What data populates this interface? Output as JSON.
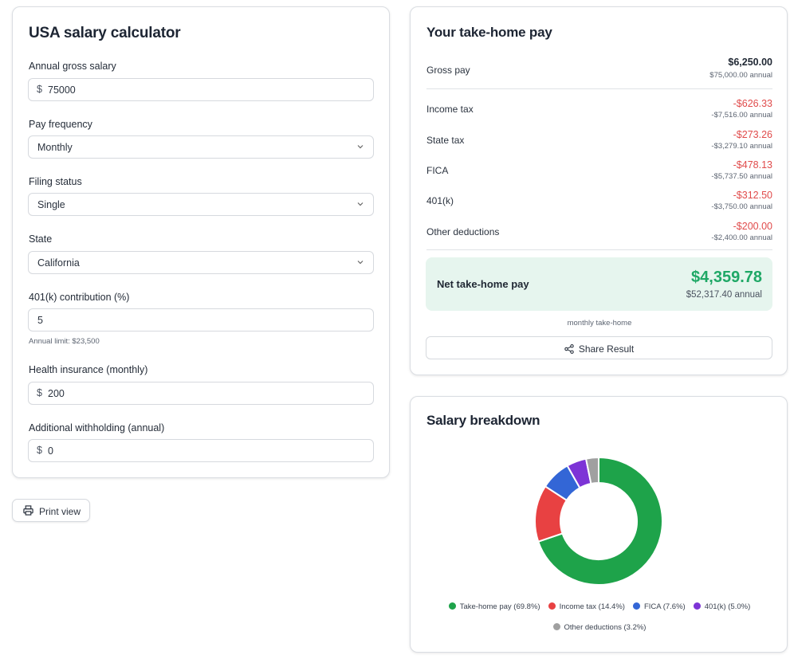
{
  "form": {
    "title": "USA salary calculator",
    "annual_salary": {
      "label": "Annual gross salary",
      "prefix": "$",
      "value": "75000"
    },
    "pay_frequency": {
      "label": "Pay frequency",
      "value": "Monthly"
    },
    "filing_status": {
      "label": "Filing status",
      "value": "Single"
    },
    "state": {
      "label": "State",
      "value": "California"
    },
    "contribution": {
      "label": "401(k) contribution (%)",
      "value": "5",
      "hint": "Annual limit: $23,500"
    },
    "health": {
      "label": "Health insurance (monthly)",
      "prefix": "$",
      "value": "200"
    },
    "withholding": {
      "label": "Additional withholding (annual)",
      "prefix": "$",
      "value": "0"
    }
  },
  "print_button": {
    "label": "Print view",
    "icon": "printer-icon"
  },
  "results": {
    "title": "Your take-home pay",
    "gross": {
      "label": "Gross pay",
      "amount": "$6,250.00",
      "annual": "$75,000.00 annual"
    },
    "rows": [
      {
        "label": "Income tax",
        "amount": "-$626.33",
        "annual": "-$7,516.00 annual"
      },
      {
        "label": "State tax",
        "amount": "-$273.26",
        "annual": "-$3,279.10 annual"
      },
      {
        "label": "FICA",
        "amount": "-$478.13",
        "annual": "-$5,737.50 annual"
      },
      {
        "label": "401(k)",
        "amount": "-$312.50",
        "annual": "-$3,750.00 annual"
      },
      {
        "label": "Other deductions",
        "amount": "-$200.00",
        "annual": "-$2,400.00 annual"
      }
    ],
    "net": {
      "label": "Net take-home pay",
      "amount": "$4,359.78",
      "annual": "$52,317.40 annual"
    },
    "note": "monthly take-home",
    "share_label": "Share Result",
    "share_icon": "share-icon"
  },
  "breakdown": {
    "title": "Salary breakdown"
  },
  "chart_data": {
    "type": "pie",
    "donut": true,
    "title": "Salary breakdown",
    "series": [
      {
        "name": "Take-home pay",
        "legend": "Take-home pay (69.8%)",
        "value": 69.8,
        "color": "#1ea34a"
      },
      {
        "name": "Income tax",
        "legend": "Income tax (14.4%)",
        "value": 14.4,
        "color": "#e84142"
      },
      {
        "name": "FICA",
        "legend": "FICA (7.6%)",
        "value": 7.6,
        "color": "#3366d6"
      },
      {
        "name": "401(k)",
        "legend": "401(k) (5.0%)",
        "value": 5.0,
        "color": "#7d34d6"
      },
      {
        "name": "Other deductions",
        "legend": "Other deductions (3.2%)",
        "value": 3.2,
        "color": "#a0a0a0"
      }
    ],
    "legend_position": "bottom"
  }
}
